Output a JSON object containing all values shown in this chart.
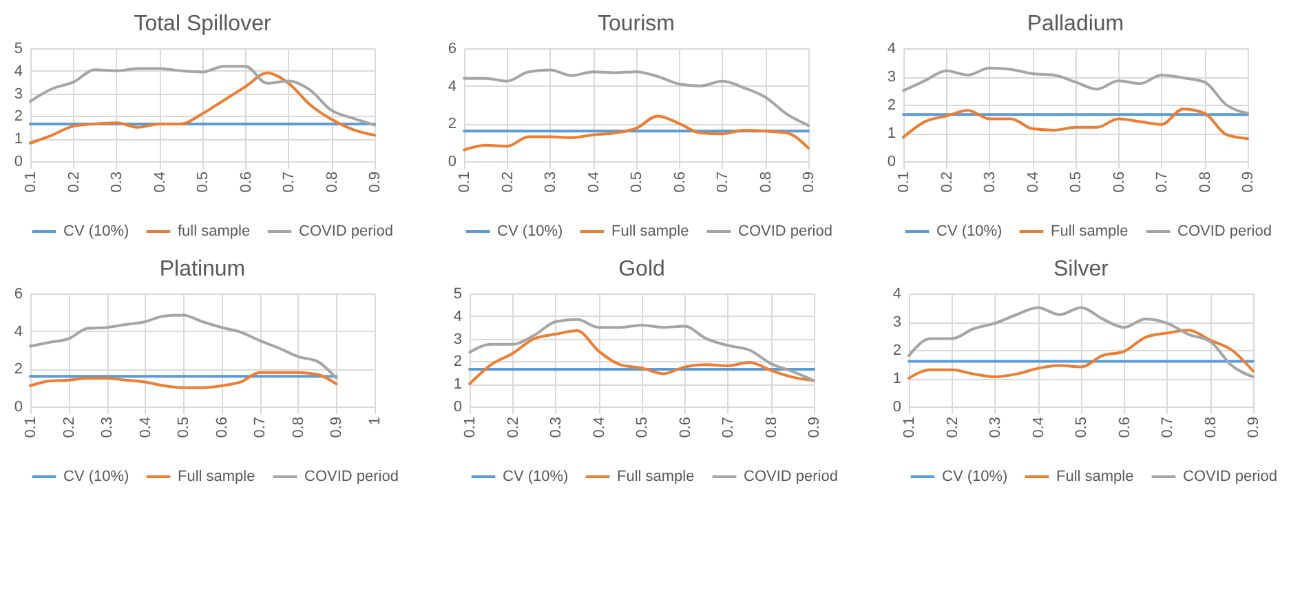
{
  "chart_data": [
    {
      "type": "line",
      "title": "Total Spillover",
      "x": [
        0.1,
        0.15,
        0.2,
        0.25,
        0.3,
        0.35,
        0.4,
        0.45,
        0.5,
        0.55,
        0.6,
        0.65,
        0.7,
        0.75,
        0.8,
        0.85,
        0.9
      ],
      "xlim": [
        0.1,
        0.9
      ],
      "xticks": [
        0.1,
        0.2,
        0.3,
        0.4,
        0.5,
        0.6,
        0.7,
        0.8,
        0.9
      ],
      "ylim": [
        0,
        5
      ],
      "yticks": [
        0,
        1,
        2,
        3,
        4,
        5
      ],
      "grid": true,
      "legend": "bottom",
      "series": [
        {
          "name": "CV (10%)",
          "color": "#5b9bd5",
          "values": [
            1.65,
            1.65,
            1.65,
            1.65,
            1.65,
            1.65,
            1.65,
            1.65,
            1.65,
            1.65,
            1.65,
            1.65,
            1.65,
            1.65,
            1.65,
            1.65,
            1.65
          ]
        },
        {
          "name": "full sample",
          "color": "#ed7d31",
          "values": [
            0.8,
            1.15,
            1.55,
            1.65,
            1.7,
            1.5,
            1.65,
            1.65,
            2.1,
            2.7,
            3.3,
            3.9,
            3.45,
            2.5,
            1.85,
            1.4,
            1.15
          ]
        },
        {
          "name": "COVID period",
          "color": "#a5a5a5",
          "values": [
            2.65,
            3.2,
            3.5,
            4.05,
            4.0,
            4.1,
            4.1,
            4.0,
            3.95,
            4.2,
            4.2,
            3.45,
            3.55,
            3.15,
            2.25,
            1.9,
            1.6
          ]
        }
      ]
    },
    {
      "type": "line",
      "title": "Tourism",
      "x": [
        0.1,
        0.15,
        0.2,
        0.25,
        0.3,
        0.35,
        0.4,
        0.45,
        0.5,
        0.55,
        0.6,
        0.65,
        0.7,
        0.75,
        0.8,
        0.85,
        0.9
      ],
      "xlim": [
        0.1,
        0.9
      ],
      "xticks": [
        0.1,
        0.2,
        0.3,
        0.4,
        0.5,
        0.6,
        0.7,
        0.8,
        0.9
      ],
      "ylim": [
        0,
        6
      ],
      "yticks": [
        0,
        2,
        4,
        6
      ],
      "grid": true,
      "legend": "bottom",
      "series": [
        {
          "name": "CV (10%)",
          "color": "#5b9bd5",
          "values": [
            1.6,
            1.6,
            1.6,
            1.6,
            1.6,
            1.6,
            1.6,
            1.6,
            1.6,
            1.6,
            1.6,
            1.6,
            1.6,
            1.6,
            1.6,
            1.6,
            1.6
          ]
        },
        {
          "name": "Full sample",
          "color": "#ed7d31",
          "values": [
            0.6,
            0.85,
            0.8,
            1.3,
            1.3,
            1.25,
            1.4,
            1.5,
            1.75,
            2.4,
            2.0,
            1.5,
            1.45,
            1.65,
            1.6,
            1.5,
            0.7
          ]
        },
        {
          "name": "COVID period",
          "color": "#a5a5a5",
          "values": [
            4.4,
            4.4,
            4.25,
            4.75,
            4.85,
            4.55,
            4.75,
            4.7,
            4.75,
            4.5,
            4.1,
            4.0,
            4.25,
            3.9,
            3.4,
            2.5,
            1.9
          ]
        }
      ]
    },
    {
      "type": "line",
      "title": "Palladium",
      "x": [
        0.1,
        0.15,
        0.2,
        0.25,
        0.3,
        0.35,
        0.4,
        0.45,
        0.5,
        0.55,
        0.6,
        0.65,
        0.7,
        0.75,
        0.8,
        0.85,
        0.9
      ],
      "xlim": [
        0.1,
        0.9
      ],
      "xticks": [
        0.1,
        0.2,
        0.3,
        0.4,
        0.5,
        0.6,
        0.7,
        0.8,
        0.9
      ],
      "ylim": [
        0,
        4
      ],
      "yticks": [
        0,
        1,
        2,
        3,
        4
      ],
      "grid": true,
      "legend": "bottom",
      "series": [
        {
          "name": "CV (10%)",
          "color": "#5b9bd5",
          "values": [
            1.65,
            1.65,
            1.65,
            1.65,
            1.65,
            1.65,
            1.65,
            1.65,
            1.65,
            1.65,
            1.65,
            1.65,
            1.65,
            1.65,
            1.65,
            1.65,
            1.65
          ]
        },
        {
          "name": "Full sample",
          "color": "#ed7d31",
          "values": [
            0.85,
            1.4,
            1.6,
            1.8,
            1.5,
            1.5,
            1.15,
            1.1,
            1.2,
            1.2,
            1.5,
            1.4,
            1.3,
            1.85,
            1.7,
            0.95,
            0.8
          ]
        },
        {
          "name": "COVID period",
          "color": "#a5a5a5",
          "values": [
            2.5,
            2.85,
            3.2,
            3.05,
            3.3,
            3.25,
            3.1,
            3.05,
            2.8,
            2.55,
            2.85,
            2.75,
            3.05,
            2.95,
            2.8,
            2.0,
            1.7
          ]
        }
      ]
    },
    {
      "type": "line",
      "title": "Platinum",
      "x": [
        0.1,
        0.15,
        0.2,
        0.25,
        0.3,
        0.35,
        0.4,
        0.45,
        0.5,
        0.55,
        0.6,
        0.65,
        0.7,
        0.75,
        0.8,
        0.85,
        0.9
      ],
      "xlim": [
        0.1,
        1
      ],
      "xticks": [
        0.1,
        0.2,
        0.3,
        0.4,
        0.5,
        0.6,
        0.7,
        0.8,
        0.9,
        1
      ],
      "ylim": [
        0,
        6
      ],
      "yticks": [
        0,
        2,
        4,
        6
      ],
      "grid": true,
      "legend": "bottom",
      "series": [
        {
          "name": "CV (10%)",
          "color": "#5b9bd5",
          "values": [
            1.6,
            1.6,
            1.6,
            1.6,
            1.6,
            1.6,
            1.6,
            1.6,
            1.6,
            1.6,
            1.6,
            1.6,
            1.6,
            1.6,
            1.6,
            1.6,
            1.6
          ]
        },
        {
          "name": "Full sample",
          "color": "#ed7d31",
          "values": [
            1.1,
            1.35,
            1.4,
            1.5,
            1.5,
            1.4,
            1.3,
            1.1,
            1.0,
            1.0,
            1.1,
            1.3,
            1.8,
            1.8,
            1.8,
            1.7,
            1.2
          ]
        },
        {
          "name": "COVID period",
          "color": "#a5a5a5",
          "values": [
            3.2,
            3.4,
            3.6,
            4.15,
            4.2,
            4.35,
            4.5,
            4.8,
            4.85,
            4.5,
            4.2,
            3.95,
            3.5,
            3.1,
            2.65,
            2.4,
            1.5
          ]
        }
      ]
    },
    {
      "type": "line",
      "title": "Gold",
      "x": [
        0.1,
        0.15,
        0.2,
        0.25,
        0.3,
        0.35,
        0.4,
        0.45,
        0.5,
        0.55,
        0.6,
        0.65,
        0.7,
        0.75,
        0.8,
        0.85,
        0.9
      ],
      "xlim": [
        0.1,
        0.9
      ],
      "xticks": [
        0.1,
        0.2,
        0.3,
        0.4,
        0.5,
        0.6,
        0.7,
        0.8,
        0.9
      ],
      "ylim": [
        0,
        5
      ],
      "yticks": [
        0,
        1,
        2,
        3,
        4,
        5
      ],
      "grid": true,
      "legend": "bottom",
      "series": [
        {
          "name": "CV (10%)",
          "color": "#5b9bd5",
          "values": [
            1.65,
            1.65,
            1.65,
            1.65,
            1.65,
            1.65,
            1.65,
            1.65,
            1.65,
            1.65,
            1.65,
            1.65,
            1.65,
            1.65,
            1.65,
            1.65,
            1.65
          ]
        },
        {
          "name": "Full sample",
          "color": "#ed7d31",
          "values": [
            1.0,
            1.85,
            2.35,
            3.0,
            3.2,
            3.35,
            2.45,
            1.85,
            1.7,
            1.45,
            1.75,
            1.85,
            1.8,
            1.95,
            1.6,
            1.3,
            1.15
          ]
        },
        {
          "name": "COVID period",
          "color": "#a5a5a5",
          "values": [
            2.4,
            2.75,
            2.75,
            3.15,
            3.75,
            3.85,
            3.5,
            3.5,
            3.6,
            3.5,
            3.55,
            3.0,
            2.7,
            2.5,
            1.9,
            1.55,
            1.15
          ]
        }
      ]
    },
    {
      "type": "line",
      "title": "Silver",
      "x": [
        0.1,
        0.15,
        0.2,
        0.25,
        0.3,
        0.35,
        0.4,
        0.45,
        0.5,
        0.55,
        0.6,
        0.65,
        0.7,
        0.75,
        0.8,
        0.85,
        0.9
      ],
      "xlim": [
        0.1,
        0.9
      ],
      "xticks": [
        0.1,
        0.2,
        0.3,
        0.4,
        0.5,
        0.6,
        0.7,
        0.8,
        0.9
      ],
      "ylim": [
        0,
        4
      ],
      "yticks": [
        0,
        1,
        2,
        3,
        4
      ],
      "grid": true,
      "legend": "bottom",
      "series": [
        {
          "name": "CV (10%)",
          "color": "#5b9bd5",
          "values": [
            1.6,
            1.6,
            1.6,
            1.6,
            1.6,
            1.6,
            1.6,
            1.6,
            1.6,
            1.6,
            1.6,
            1.6,
            1.6,
            1.6,
            1.6,
            1.6,
            1.6
          ]
        },
        {
          "name": "Full sample",
          "color": "#ed7d31",
          "values": [
            1.0,
            1.3,
            1.3,
            1.15,
            1.05,
            1.15,
            1.35,
            1.45,
            1.4,
            1.8,
            1.95,
            2.45,
            2.6,
            2.7,
            2.35,
            2.0,
            1.25
          ]
        },
        {
          "name": "COVID period",
          "color": "#a5a5a5",
          "values": [
            1.8,
            2.4,
            2.4,
            2.75,
            2.95,
            3.25,
            3.5,
            3.25,
            3.5,
            3.1,
            2.8,
            3.1,
            2.95,
            2.55,
            2.3,
            1.45,
            1.05
          ]
        }
      ]
    }
  ]
}
